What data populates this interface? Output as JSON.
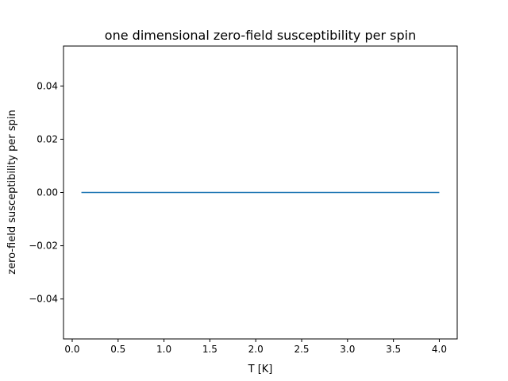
{
  "chart_data": {
    "type": "line",
    "title": "one dimensional zero-field susceptibility per spin",
    "xlabel": "T [K]",
    "ylabel": "zero-field susceptibility per spin",
    "xlim": [
      -0.095,
      4.195
    ],
    "ylim": [
      -0.055,
      0.055
    ],
    "x_ticks": [
      0.0,
      0.5,
      1.0,
      1.5,
      2.0,
      2.5,
      3.0,
      3.5,
      4.0
    ],
    "x_tick_labels": [
      "0.0",
      "0.5",
      "1.0",
      "1.5",
      "2.0",
      "2.5",
      "3.0",
      "3.5",
      "4.0"
    ],
    "y_ticks": [
      -0.04,
      -0.02,
      0.0,
      0.02,
      0.04
    ],
    "y_tick_labels": [
      "−0.04",
      "−0.02",
      "0.00",
      "0.02",
      "0.04"
    ],
    "grid": false,
    "series": [
      {
        "color": "#1f77b4",
        "x": [
          0.1,
          4.0
        ],
        "y": [
          0.0,
          0.0
        ]
      }
    ]
  }
}
